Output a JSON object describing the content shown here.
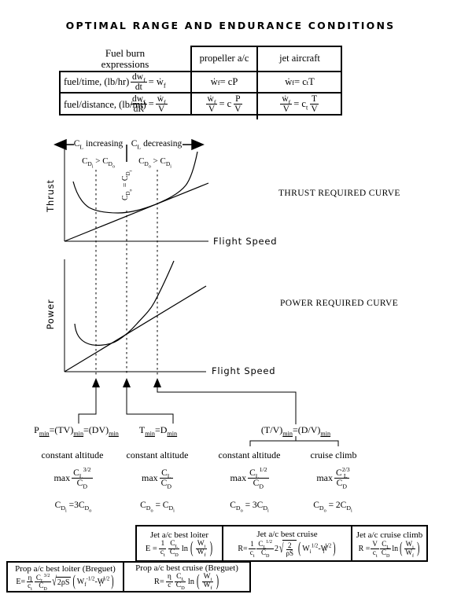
{
  "title": "OPTIMAL RANGE AND ENDURANCE CONDITIONS",
  "fuel_table": {
    "corner": {
      "line1": "Fuel burn",
      "line2": "expressions"
    },
    "headers": {
      "prop": "propeller a/c",
      "jet": "jet aircraft"
    },
    "row_time": {
      "label": "fuel/time, (lb/hr)",
      "def": {
        "num": "dw<sub>f</sub>",
        "den": "dt",
        "rhs": "= ẇ<sub>f</sub>"
      },
      "prop": "ẇ<sub>f</sub> = cP",
      "jet": "ẇ<sub>f</sub> = c<sub>t</sub>T"
    },
    "row_dist": {
      "label": "fuel/distance, (lb/mi)",
      "def": {
        "num": "dw<sub>f</sub>",
        "den": "dR",
        "mid": "=",
        "num2": "ẇ<sub>f</sub>",
        "den2": "V"
      },
      "prop": {
        "num": "ẇ<sub>f</sub>",
        "den": "V",
        "mid": "= c",
        "num2": "P",
        "den2": "V"
      },
      "jet": {
        "num": "ẇ<sub>f</sub>",
        "den": "V",
        "mid": "= c<sub>t</sub>",
        "num2": "T",
        "den2": "V"
      }
    }
  },
  "thrust_graph": {
    "cl_increasing": "C<sub>L</sub> increasing",
    "cl_decreasing": "C<sub>L</sub> decreasing",
    "region_left": "C<sub>D<sub>i</sub></sub> &gt; C<sub>D<sub>o</sub></sub>",
    "region_right": "C<sub>D<sub>o</sub></sub> &gt; C<sub>D<sub>i</sub></sub>",
    "region_center": "C<sub>D<sub>o</sub></sub> = C<sub>D<sub>i</sub></sub>",
    "y_label": "Thrust",
    "x_label": "Flight Speed",
    "caption": "THRUST REQUIRED CURVE"
  },
  "power_graph": {
    "y_label": "Power",
    "x_label": "Flight Speed",
    "caption": "POWER REQUIRED CURVE"
  },
  "optima": {
    "min1": "P<sub><u>min</u></sub>=(TV)<sub><u>min</u></sub>=(DV)<sub><u>min</u></sub>",
    "min2": "T<sub><u>min</u></sub>=D<sub><u>min</u></sub>",
    "min3": "(T/V)<sub><u>min</u></sub>=(D/V)<sub><u>min</u></sub>",
    "columns": [
      {
        "condition": "constant altitude",
        "max_word": "max",
        "num": "C<sub>L</sub><sup>3/2</sup>",
        "den": "C<sub>D</sub>",
        "drag": "C<sub>D<sub>i</sub></sub> =3C<sub>D<sub>o</sub></sub>"
      },
      {
        "condition": "constant altitude",
        "max_word": "max",
        "num": "C<sub>L</sub>",
        "den": "C<sub>D</sub>",
        "drag": "C<sub>D<sub>o</sub></sub> = C<sub>D<sub>i</sub></sub>"
      },
      {
        "condition": "constant altitude",
        "max_word": "max",
        "num": "C<sub>L</sub><sup>1/2</sup>",
        "den": "C<sub>D</sub>",
        "drag": "C<sub>D<sub>o</sub></sub> = 3C<sub>D<sub>i</sub></sub>"
      },
      {
        "condition": "cruise climb",
        "max_word": "max",
        "num": "C<sup>2/3</sup><sub>L</sub>",
        "den": "C<sub>D</sub>",
        "drag": "C<sub>D<sub>o</sub></sub> = 2C<sub>D<sub>i</sub></sub>"
      }
    ]
  },
  "boxes": {
    "jet_loiter": {
      "title": "Jet a/c best loiter",
      "lhs": "E =",
      "f1n": "1",
      "f1d": "c<sub>t</sub>",
      "f2n": "C<sub>L</sub>",
      "f2d": "C<sub>D</sub>",
      "fn": "ln",
      "f3n": "W<sub>i</sub>",
      "f3d": "W<sub>f</sub>"
    },
    "jet_cruise": {
      "title": "Jet a/c best cruise",
      "lhs": "R=",
      "f1n": "1",
      "f1d": "c<sub>t</sub>",
      "f2n": "C<sub>L</sub><sup>1/2</sup>",
      "f2d": "C<sub>D</sub>",
      "coef": "2",
      "radn": "2",
      "radd": "ρS",
      "tail": "W<sub>i</sub><sup>1/2</sup>-W<sub>f</sub><sup>1/2</sup>"
    },
    "jet_climb": {
      "title": "Jet a/c cruise climb",
      "lhs": "R =",
      "f1n": "V",
      "f1d": "c<sub>t</sub>",
      "f2n": "C<sub>L</sub>",
      "f2d": "C<sub>D</sub>",
      "fn": "ln",
      "f3n": "W<sub>i</sub>",
      "f3d": "W<sub>f</sub>"
    },
    "prop_loiter": {
      "title": "Prop a/c best loiter (Breguet)",
      "lhs": "E=",
      "f1n": "η",
      "f1d": "c<sub>t</sub>",
      "f2n": "C<sub>L</sub><sup>3/2</sup>",
      "f2d": "C<sub>D</sub>",
      "rad": "2ρS",
      "tail": "W<sub>f</sub><sup>-1/2</sup>-W<sub>i</sub><sup>-1/2</sup>"
    },
    "prop_cruise": {
      "title": "Prop a/c best cruise (Breguet)",
      "lhs": "R=",
      "f1n": "η",
      "f1d": "c",
      "f2n": "C<sub>L</sub>",
      "f2d": "C<sub>D</sub>",
      "fn": "ln",
      "f3n": "W<sub>i</sub>",
      "f3d": "W<sub>f</sub>"
    }
  }
}
